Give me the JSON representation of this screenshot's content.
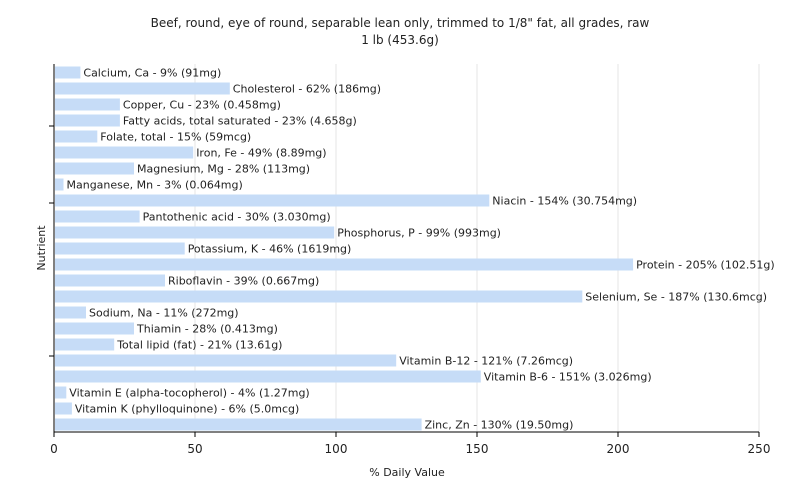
{
  "chart_data": {
    "type": "bar",
    "orientation": "horizontal",
    "title": "Beef, round, eye of round, separable lean only, trimmed to 1/8\" fat, all grades, raw",
    "subtitle": "1 lb (453.6g)",
    "xlabel": "% Daily Value",
    "ylabel": "Nutrient",
    "xlim": [
      0,
      250
    ],
    "xticks": [
      0,
      50,
      100,
      150,
      200,
      250
    ],
    "grid": "vertical",
    "bar_color": "#c6dcf7",
    "bars": [
      {
        "category": "Calcium, Ca",
        "value": 9,
        "label": "Calcium, Ca - 9% (91mg)"
      },
      {
        "category": "Cholesterol",
        "value": 62,
        "label": "Cholesterol - 62% (186mg)"
      },
      {
        "category": "Copper, Cu",
        "value": 23,
        "label": "Copper, Cu - 23% (0.458mg)"
      },
      {
        "category": "Fatty acids, total saturated",
        "value": 23,
        "label": "Fatty acids, total saturated - 23% (4.658g)"
      },
      {
        "category": "Folate, total",
        "value": 15,
        "label": "Folate, total - 15% (59mcg)"
      },
      {
        "category": "Iron, Fe",
        "value": 49,
        "label": "Iron, Fe - 49% (8.89mg)"
      },
      {
        "category": "Magnesium, Mg",
        "value": 28,
        "label": "Magnesium, Mg - 28% (113mg)"
      },
      {
        "category": "Manganese, Mn",
        "value": 3,
        "label": "Manganese, Mn - 3% (0.064mg)"
      },
      {
        "category": "Niacin",
        "value": 154,
        "label": "Niacin - 154% (30.754mg)"
      },
      {
        "category": "Pantothenic acid",
        "value": 30,
        "label": "Pantothenic acid - 30% (3.030mg)"
      },
      {
        "category": "Phosphorus, P",
        "value": 99,
        "label": "Phosphorus, P - 99% (993mg)"
      },
      {
        "category": "Potassium, K",
        "value": 46,
        "label": "Potassium, K - 46% (1619mg)"
      },
      {
        "category": "Protein",
        "value": 205,
        "label": "Protein - 205% (102.51g)"
      },
      {
        "category": "Riboflavin",
        "value": 39,
        "label": "Riboflavin - 39% (0.667mg)"
      },
      {
        "category": "Selenium, Se",
        "value": 187,
        "label": "Selenium, Se - 187% (130.6mcg)"
      },
      {
        "category": "Sodium, Na",
        "value": 11,
        "label": "Sodium, Na - 11% (272mg)"
      },
      {
        "category": "Thiamin",
        "value": 28,
        "label": "Thiamin - 28% (0.413mg)"
      },
      {
        "category": "Total lipid (fat)",
        "value": 21,
        "label": "Total lipid (fat) - 21% (13.61g)"
      },
      {
        "category": "Vitamin B-12",
        "value": 121,
        "label": "Vitamin B-12 - 121% (7.26mcg)"
      },
      {
        "category": "Vitamin B-6",
        "value": 151,
        "label": "Vitamin B-6 - 151% (3.026mg)"
      },
      {
        "category": "Vitamin E (alpha-tocopherol)",
        "value": 4,
        "label": "Vitamin E (alpha-tocopherol) - 4% (1.27mg)"
      },
      {
        "category": "Vitamin K (phylloquinone)",
        "value": 6,
        "label": "Vitamin K (phylloquinone) - 6% (5.0mcg)"
      },
      {
        "category": "Zinc, Zn",
        "value": 130,
        "label": "Zinc, Zn - 130% (19.50mg)"
      }
    ]
  }
}
